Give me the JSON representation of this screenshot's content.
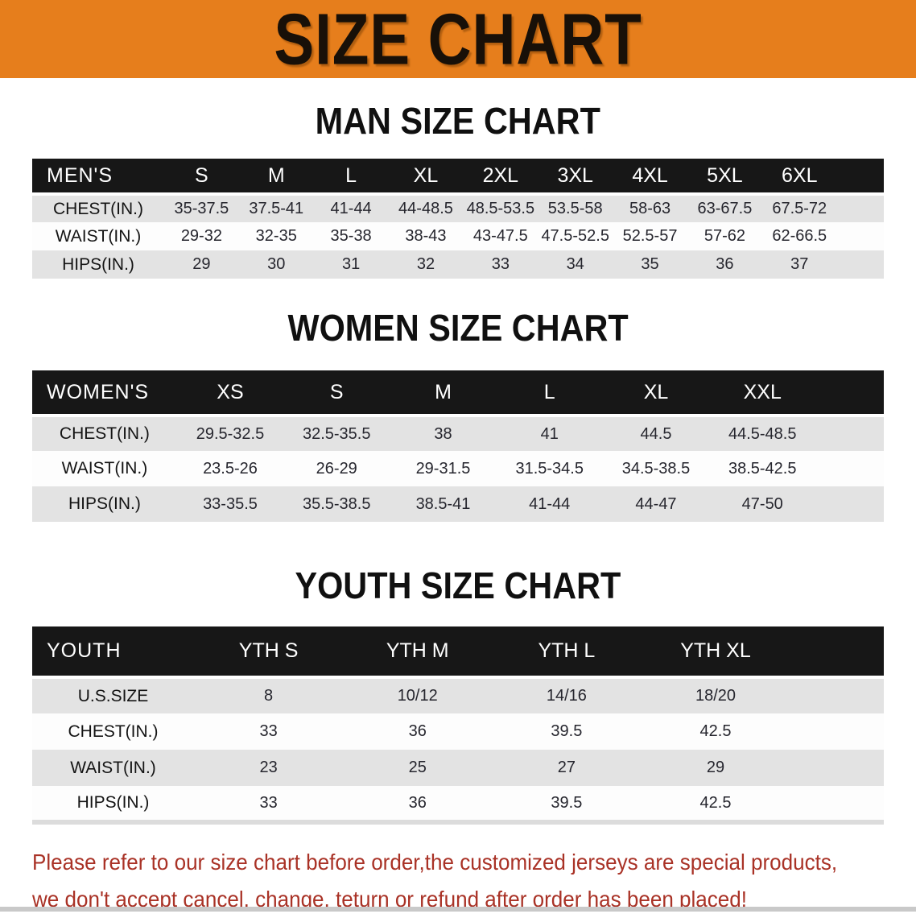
{
  "banner": {
    "title": "SIZE CHART"
  },
  "sections": [
    {
      "heading": "MAN SIZE CHART",
      "table": {
        "corner_label": "MEN'S",
        "columns": [
          "S",
          "M",
          "L",
          "XL",
          "2XL",
          "3XL",
          "4XL",
          "5XL",
          "6XL"
        ],
        "rows": [
          {
            "label": "CHEST(IN.)",
            "values": [
              "35-37.5",
              "37.5-41",
              "41-44",
              "44-48.5",
              "48.5-53.5",
              "53.5-58",
              "58-63",
              "63-67.5",
              "67.5-72"
            ]
          },
          {
            "label": "WAIST(IN.)",
            "values": [
              "29-32",
              "32-35",
              "35-38",
              "38-43",
              "43-47.5",
              "47.5-52.5",
              "52.5-57",
              "57-62",
              "62-66.5"
            ]
          },
          {
            "label": "HIPS(IN.)",
            "values": [
              "29",
              "30",
              "31",
              "32",
              "33",
              "34",
              "35",
              "36",
              "37"
            ]
          }
        ]
      }
    },
    {
      "heading": "WOMEN SIZE CHART",
      "table": {
        "corner_label": "WOMEN'S",
        "columns": [
          "XS",
          "S",
          "M",
          "L",
          "XL",
          "XXL"
        ],
        "rows": [
          {
            "label": "CHEST(IN.)",
            "values": [
              "29.5-32.5",
              "32.5-35.5",
              "38",
              "41",
              "44.5",
              "44.5-48.5"
            ]
          },
          {
            "label": "WAIST(IN.)",
            "values": [
              "23.5-26",
              "26-29",
              "29-31.5",
              "31.5-34.5",
              "34.5-38.5",
              "38.5-42.5"
            ]
          },
          {
            "label": "HIPS(IN.)",
            "values": [
              "33-35.5",
              "35.5-38.5",
              "38.5-41",
              "41-44",
              "44-47",
              "47-50"
            ]
          }
        ]
      }
    },
    {
      "heading": "YOUTH SIZE CHART",
      "table": {
        "corner_label": "YOUTH",
        "columns": [
          "YTH S",
          "YTH M",
          "YTH L",
          "YTH XL"
        ],
        "rows": [
          {
            "label": "U.S.SIZE",
            "values": [
              "8",
              "10/12",
              "14/16",
              "18/20"
            ]
          },
          {
            "label": "CHEST(IN.)",
            "values": [
              "33",
              "36",
              "39.5",
              "42.5"
            ]
          },
          {
            "label": "WAIST(IN.)",
            "values": [
              "23",
              "25",
              "27",
              "29"
            ]
          },
          {
            "label": "HIPS(IN.)",
            "values": [
              "33",
              "36",
              "39.5",
              "42.5"
            ]
          }
        ]
      }
    }
  ],
  "footer": {
    "line1": "Please refer to our size chart before order,the customized jerseys are special products,",
    "line2": "we don't accept cancel, change, teturn or refund after order has been placed!"
  },
  "colors": {
    "banner_bg": "#E67E1C",
    "header_band_bg": "#171717",
    "row_stripe_gray": "#E3E3E3",
    "footer_text_red": "#A93226"
  }
}
